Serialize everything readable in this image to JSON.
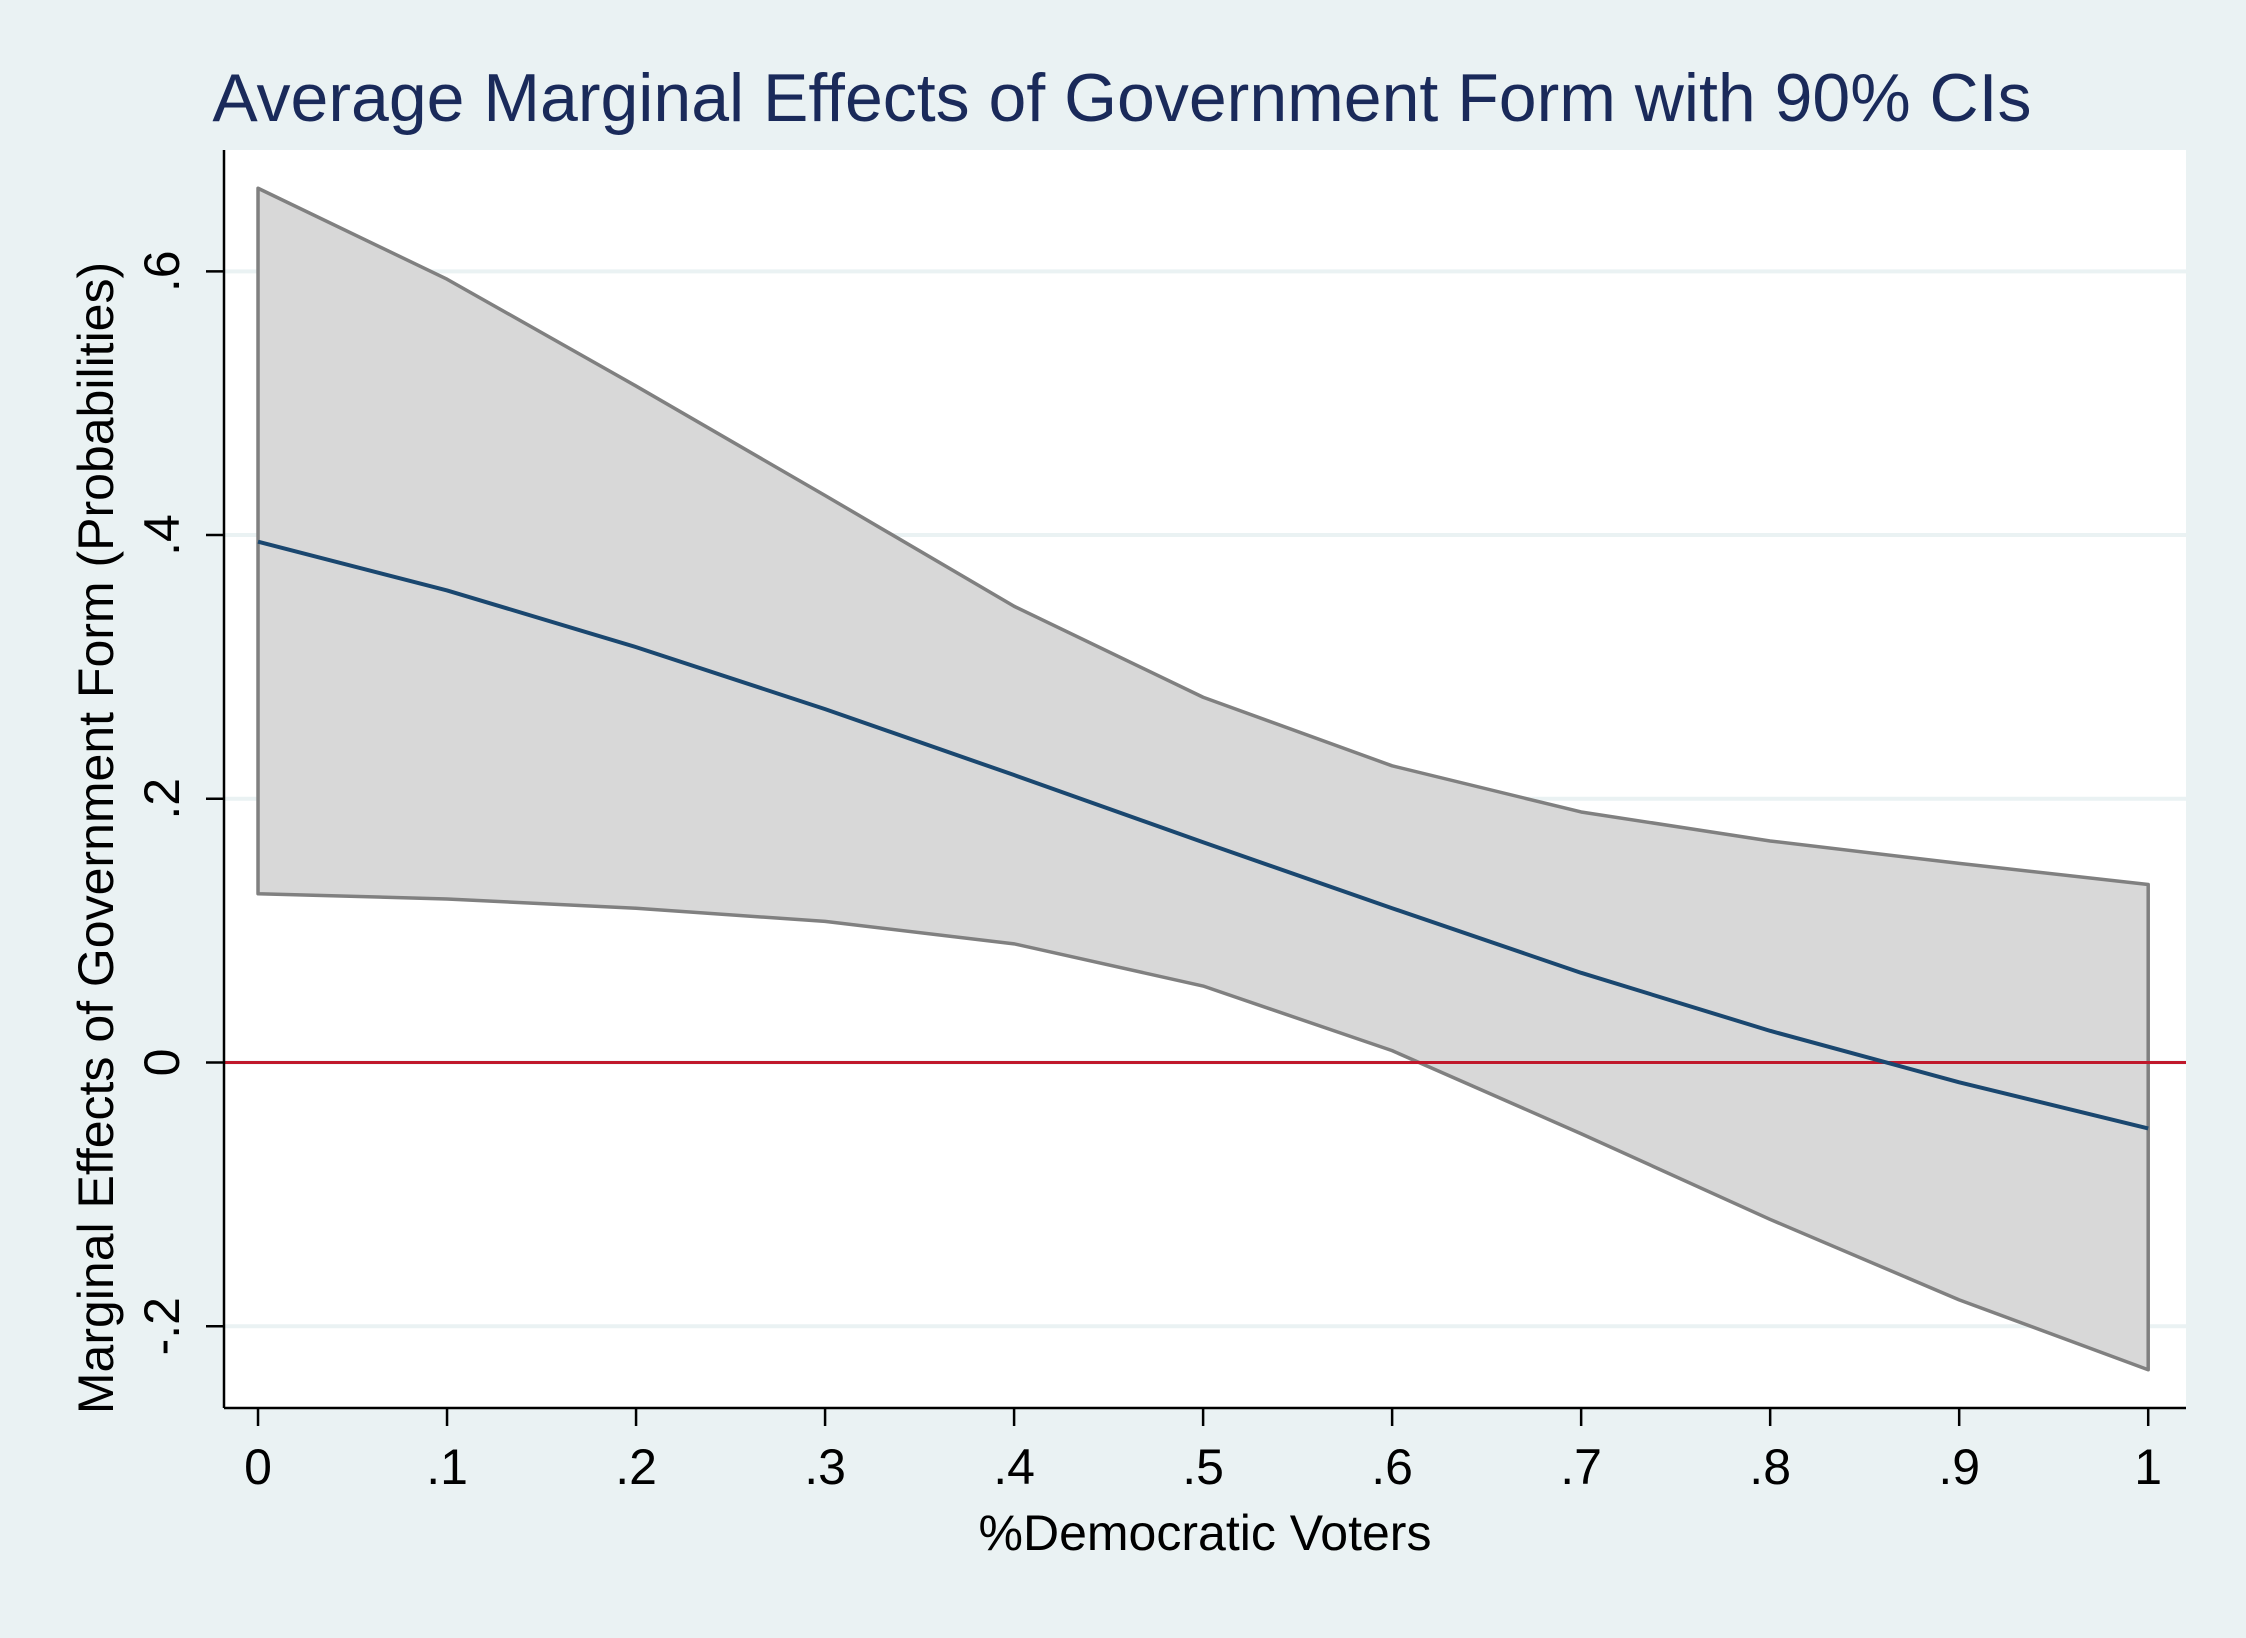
{
  "chart_data": {
    "type": "line",
    "title": "Average Marginal Effects of Government Form with 90% CIs",
    "xlabel": "%Democratic Voters",
    "ylabel": "Marginal Effects of Government Form (Probabilities)",
    "x": [
      0,
      0.1,
      0.2,
      0.3,
      0.4,
      0.5,
      0.6,
      0.7,
      0.8,
      0.9,
      1.0
    ],
    "series": [
      {
        "values": [
          0.395,
          0.358,
          0.315,
          0.268,
          0.218,
          0.167,
          0.117,
          0.068,
          0.024,
          -0.015,
          -0.05
        ]
      }
    ],
    "ci_upper": [
      0.663,
      0.594,
      0.513,
      0.43,
      0.346,
      0.277,
      0.225,
      0.19,
      0.168,
      0.151,
      0.135
    ],
    "ci_lower": [
      0.128,
      0.124,
      0.117,
      0.107,
      0.09,
      0.058,
      0.009,
      -0.054,
      -0.119,
      -0.18,
      -0.233
    ],
    "reference_line": 0,
    "xlim": [
      -0.018,
      1.02
    ],
    "ylim": [
      -0.262,
      0.692
    ],
    "x_ticks": [
      0,
      0.1,
      0.2,
      0.3,
      0.4,
      0.5,
      0.6,
      0.7,
      0.8,
      0.9,
      1.0
    ],
    "x_tick_labels": [
      "0",
      ".1",
      ".2",
      ".3",
      ".4",
      ".5",
      ".6",
      ".7",
      ".8",
      ".9",
      "1"
    ],
    "y_ticks": [
      -0.2,
      0,
      0.2,
      0.4,
      0.6
    ],
    "y_tick_labels": [
      "-.2",
      "0",
      ".2",
      ".4",
      ".6"
    ],
    "grid": true,
    "colors": {
      "background": "#eaf2f3",
      "plot_area": "#ffffff",
      "gridline": "#eaf2f3",
      "title": "#1a2a5a",
      "line": "#1a476f",
      "ci_fill": "#d8d8d8",
      "ci_stroke": "#808080",
      "reference": "#c0182b",
      "axis": "#000000"
    }
  }
}
